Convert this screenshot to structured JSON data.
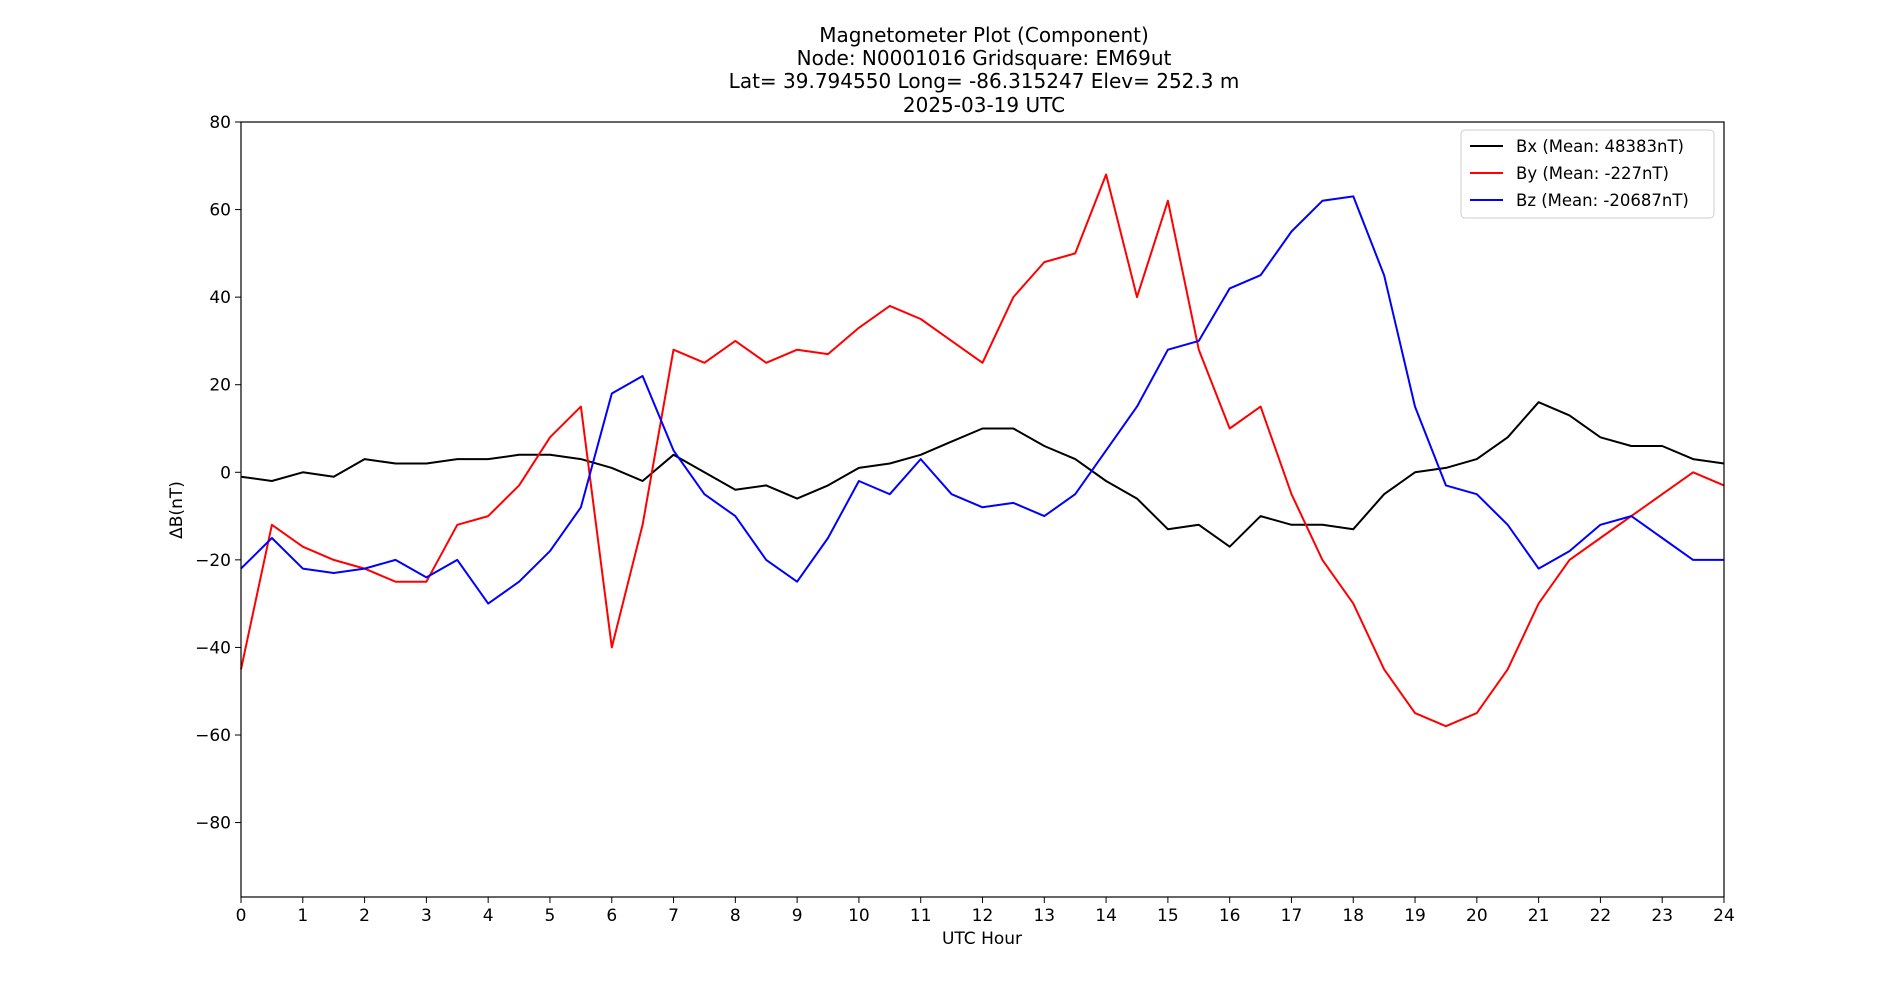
{
  "chart_data": {
    "type": "line",
    "title_lines": [
      "Magnetometer Plot (Component)",
      "Node:  N0001016     Gridsquare:  EM69ut",
      "Lat= 39.794550    Long= -86.315247    Elev= 252.3 m",
      "2025-03-19  UTC"
    ],
    "xlabel": "UTC Hour",
    "ylabel": "ΔB(nT)",
    "xlim": [
      0,
      24
    ],
    "ylim": [
      -97,
      80
    ],
    "x_ticks": [
      0,
      1,
      2,
      3,
      4,
      5,
      6,
      7,
      8,
      9,
      10,
      11,
      12,
      13,
      14,
      15,
      16,
      17,
      18,
      19,
      20,
      21,
      22,
      23,
      24
    ],
    "x_tick_labels": [
      "0",
      "1",
      "2",
      "3",
      "4",
      "5",
      "6",
      "7",
      "8",
      "9",
      "10",
      "11",
      "12",
      "13",
      "14",
      "15",
      "16",
      "17",
      "18",
      "19",
      "20",
      "21",
      "22",
      "23",
      "24"
    ],
    "y_ticks": [
      80,
      60,
      40,
      20,
      0,
      -20,
      -40,
      -60,
      -80
    ],
    "y_tick_labels": [
      "80",
      "60",
      "40",
      "20",
      "0",
      "−20",
      "−40",
      "−60",
      "−80"
    ],
    "grid": false,
    "legend_position": "top-right",
    "series": [
      {
        "name": "Bx (Mean: 48383nT)",
        "color": "#000000",
        "x": [
          0,
          0.5,
          1,
          1.5,
          2,
          2.5,
          3,
          3.5,
          4,
          4.5,
          5,
          5.5,
          6,
          6.5,
          7,
          7.5,
          8,
          8.5,
          9,
          9.5,
          10,
          10.5,
          11,
          11.5,
          12,
          12.5,
          13,
          13.5,
          14,
          14.5,
          15,
          15.5,
          16,
          16.5,
          17,
          17.5,
          18,
          18.5,
          19,
          19.5,
          20,
          20.5,
          21,
          21.5,
          22,
          22.5,
          23,
          23.5,
          24
        ],
        "y": [
          -1,
          -2,
          0,
          -1,
          3,
          2,
          2,
          3,
          3,
          4,
          4,
          3,
          1,
          -2,
          4,
          0,
          -4,
          -3,
          -6,
          -3,
          1,
          2,
          4,
          7,
          10,
          10,
          6,
          3,
          -2,
          -6,
          -13,
          -12,
          -17,
          -10,
          -12,
          -12,
          -13,
          -5,
          0,
          1,
          3,
          8,
          16,
          13,
          8,
          6,
          6,
          3,
          2
        ]
      },
      {
        "name": "By (Mean: -227nT)",
        "color": "#ff0000",
        "x": [
          0,
          0.5,
          1,
          1.5,
          2,
          2.5,
          3,
          3.5,
          4,
          4.5,
          5,
          5.5,
          6,
          6.5,
          7,
          7.5,
          8,
          8.5,
          9,
          9.5,
          10,
          10.5,
          11,
          11.5,
          12,
          12.5,
          13,
          13.5,
          14,
          14.5,
          15,
          15.5,
          16,
          16.5,
          17,
          17.5,
          18,
          18.5,
          19,
          19.5,
          20,
          20.5,
          21,
          21.5,
          22,
          22.5,
          23,
          23.5,
          24
        ],
        "y": [
          -45,
          -12,
          -17,
          -20,
          -22,
          -25,
          -25,
          -12,
          -10,
          -3,
          8,
          15,
          -40,
          -12,
          28,
          25,
          30,
          25,
          28,
          27,
          33,
          38,
          35,
          30,
          25,
          40,
          48,
          50,
          68,
          40,
          62,
          28,
          10,
          15,
          -5,
          -20,
          -30,
          -45,
          -55,
          -58,
          -55,
          -45,
          -30,
          -20,
          -15,
          -10,
          -5,
          0,
          -3
        ]
      },
      {
        "name": "Bz (Mean: -20687nT)",
        "color": "#0000ff",
        "x": [
          0,
          0.5,
          1,
          1.5,
          2,
          2.5,
          3,
          3.5,
          4,
          4.5,
          5,
          5.5,
          6,
          6.5,
          7,
          7.5,
          8,
          8.5,
          9,
          9.5,
          10,
          10.5,
          11,
          11.5,
          12,
          12.5,
          13,
          13.5,
          14,
          14.5,
          15,
          15.5,
          16,
          16.5,
          17,
          17.5,
          18,
          18.5,
          19,
          19.5,
          20,
          20.5,
          21,
          21.5,
          22,
          22.5,
          23,
          23.5,
          24
        ],
        "y": [
          -22,
          -15,
          -22,
          -23,
          -22,
          -20,
          -24,
          -20,
          -30,
          -25,
          -18,
          -8,
          18,
          22,
          5,
          -5,
          -10,
          -20,
          -25,
          -15,
          -2,
          -5,
          3,
          -5,
          -8,
          -7,
          -10,
          -5,
          5,
          15,
          28,
          30,
          42,
          45,
          55,
          62,
          63,
          45,
          15,
          -3,
          -5,
          -12,
          -22,
          -18,
          -12,
          -10,
          -15,
          -20,
          -20
        ]
      }
    ]
  }
}
